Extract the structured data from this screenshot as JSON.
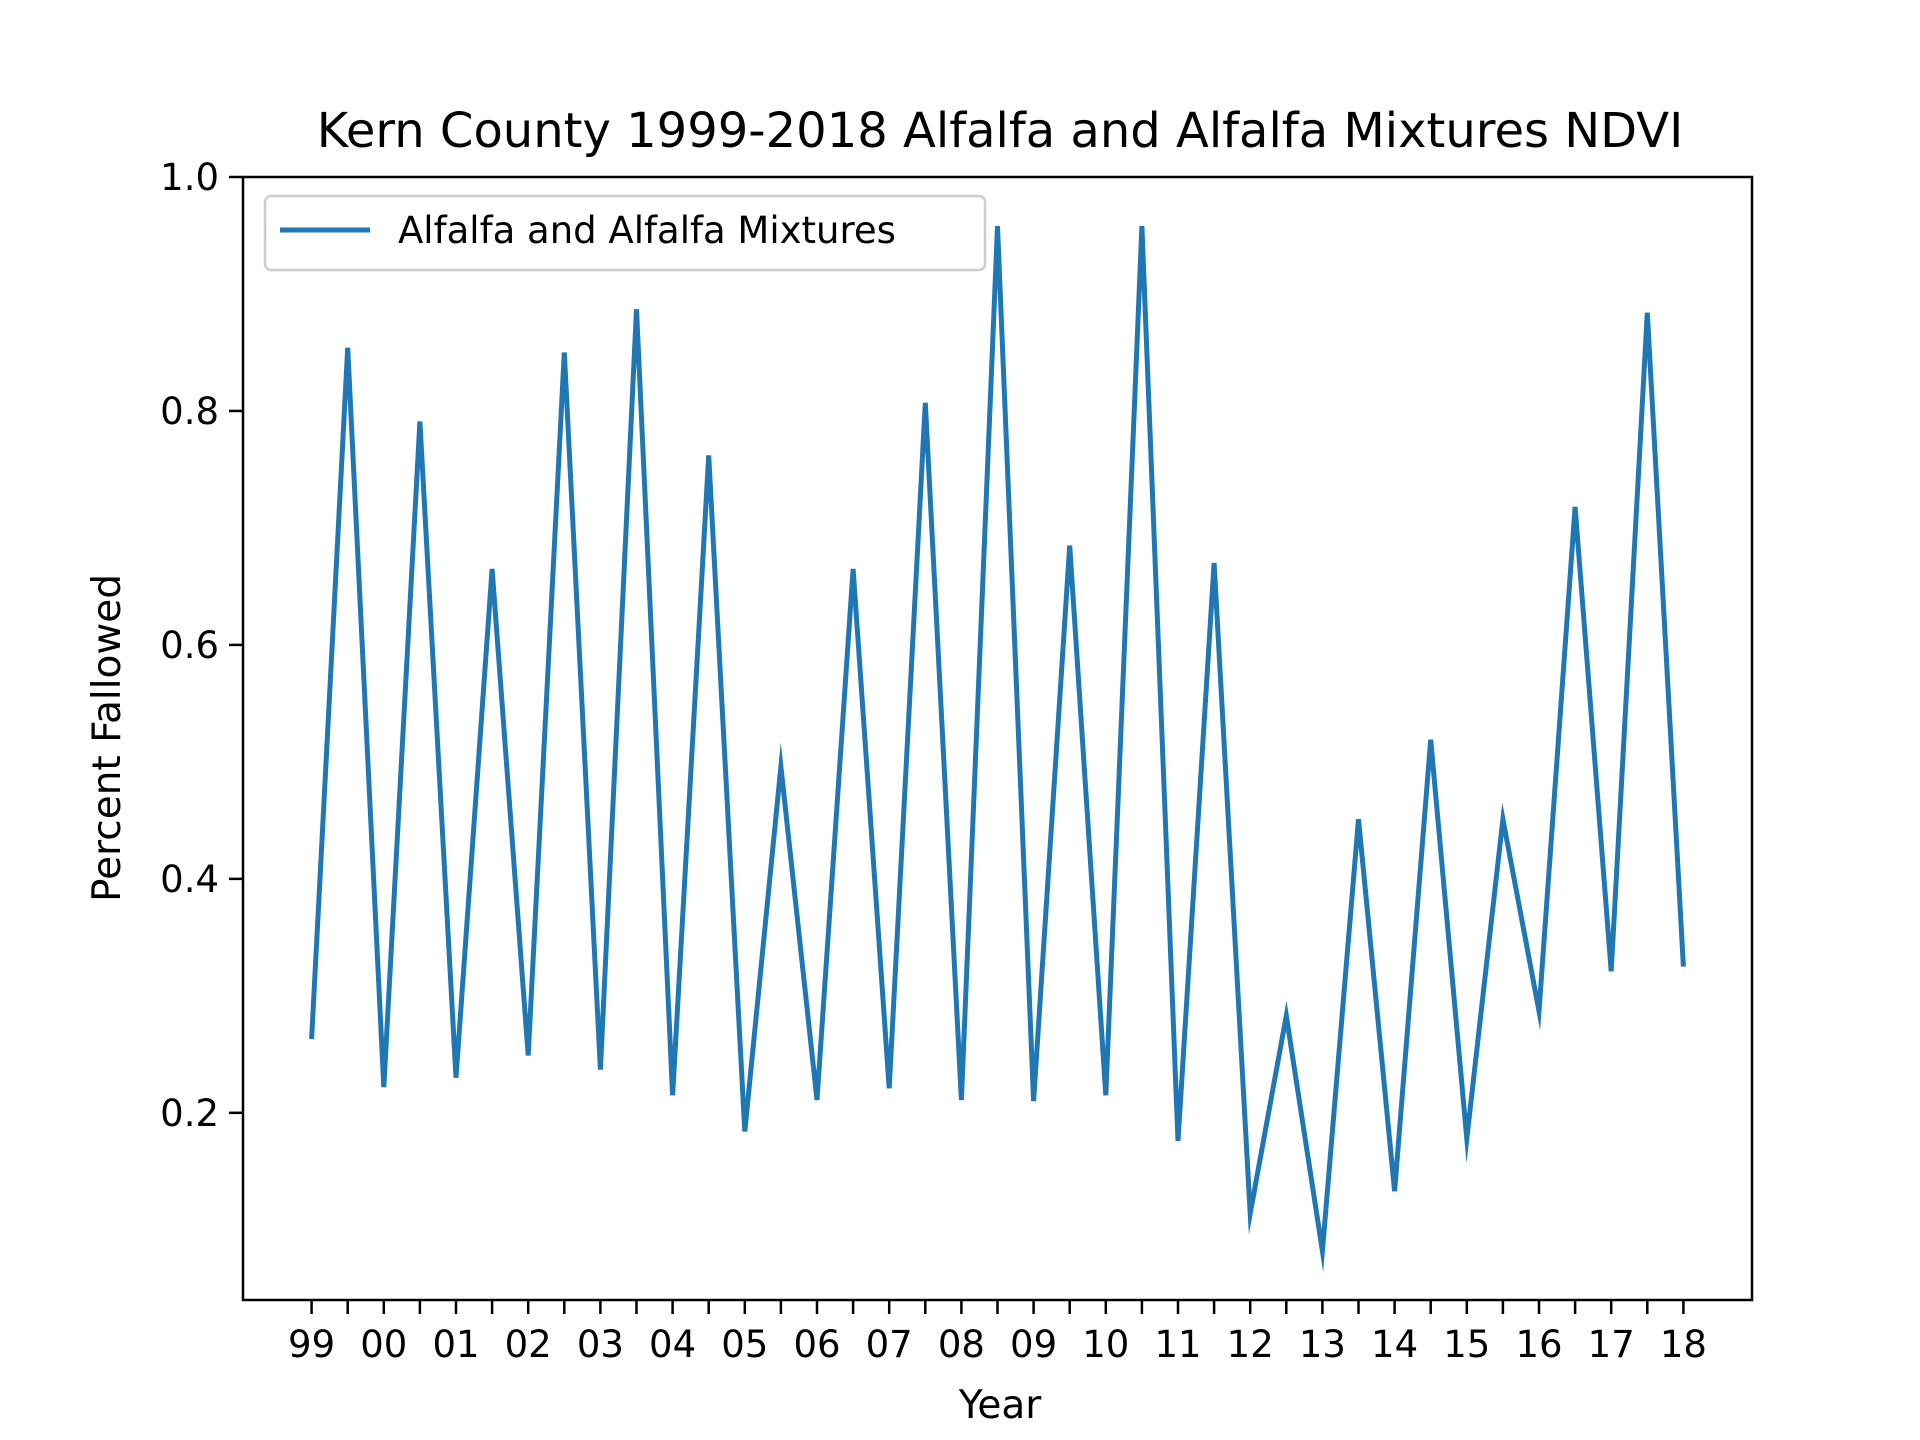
{
  "chart_data": {
    "type": "line",
    "title": "Kern County 1999-2018 Alfalfa and Alfalfa Mixtures NDVI",
    "xlabel": "Year",
    "ylabel": "Percent Fallowed",
    "x_ticks": [
      "99",
      "00",
      "01",
      "02",
      "03",
      "04",
      "05",
      "06",
      "07",
      "08",
      "09",
      "10",
      "11",
      "12",
      "13",
      "14",
      "15",
      "16",
      "17",
      "18"
    ],
    "y_ticks": [
      "0.2",
      "0.4",
      "0.6",
      "0.8",
      "1.0"
    ],
    "y_tick_values": [
      0.2,
      0.4,
      0.6,
      0.8,
      1.0
    ],
    "ylim": [
      0.04,
      1.0
    ],
    "xlim": [
      1998.05,
      2018.95
    ],
    "grid": false,
    "legend_position": "top-left",
    "color": "#1f77b4",
    "series": [
      {
        "name": "Alfalfa and Alfalfa Mixtures",
        "x": [
          1999,
          1999.5,
          2000,
          2000.5,
          2001,
          2001.5,
          2002,
          2002.5,
          2003,
          2003.5,
          2004,
          2004.5,
          2005,
          2005.5,
          2006,
          2006.5,
          2007,
          2007.5,
          2008,
          2008.5,
          2009,
          2009.5,
          2010,
          2010.5,
          2011,
          2011.5,
          2012,
          2012.5,
          2013,
          2013.5,
          2014,
          2014.5,
          2015,
          2015.5,
          2016,
          2016.5,
          2017,
          2017.5,
          2018
        ],
        "values": [
          0.263,
          0.854,
          0.222,
          0.791,
          0.23,
          0.665,
          0.249,
          0.85,
          0.237,
          0.887,
          0.215,
          0.762,
          0.184,
          0.496,
          0.211,
          0.665,
          0.221,
          0.807,
          0.211,
          0.958,
          0.21,
          0.685,
          0.215,
          0.958,
          0.176,
          0.67,
          0.114,
          0.283,
          0.082,
          0.451,
          0.133,
          0.519,
          0.178,
          0.451,
          0.287,
          0.718,
          0.321,
          0.884,
          0.325
        ]
      }
    ]
  }
}
